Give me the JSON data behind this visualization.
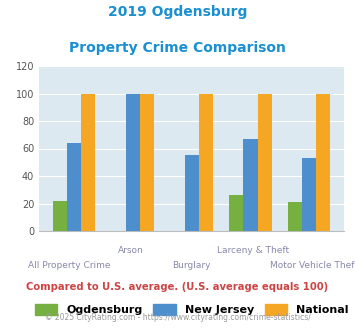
{
  "title_line1": "2019 Ogdensburg",
  "title_line2": "Property Crime Comparison",
  "categories": [
    "All Property Crime",
    "Arson",
    "Burglary",
    "Larceny & Theft",
    "Motor Vehicle Theft"
  ],
  "x_labels_row1": [
    "",
    "Arson",
    "",
    "Larceny & Theft",
    ""
  ],
  "x_labels_row2": [
    "All Property Crime",
    "",
    "Burglary",
    "",
    "Motor Vehicle Theft"
  ],
  "ogdensburg": [
    22,
    0,
    0,
    26,
    21
  ],
  "new_jersey": [
    64,
    100,
    55,
    67,
    53
  ],
  "national": [
    100,
    100,
    100,
    100,
    100
  ],
  "colors": {
    "ogdensburg": "#76b041",
    "new_jersey": "#4d8fcc",
    "national": "#f5a623"
  },
  "ylim": [
    0,
    120
  ],
  "yticks": [
    0,
    20,
    40,
    60,
    80,
    100,
    120
  ],
  "plot_bg": "#dce9f0",
  "title_color": "#1a8fd1",
  "xlabel_color": "#8888aa",
  "subtitle": "Compared to U.S. average. (U.S. average equals 100)",
  "subtitle_color": "#cc4444",
  "footer": "© 2025 CityRating.com - https://www.cityrating.com/crime-statistics/",
  "footer_color": "#999999",
  "legend_labels": [
    "Ogdensburg",
    "New Jersey",
    "National"
  ]
}
